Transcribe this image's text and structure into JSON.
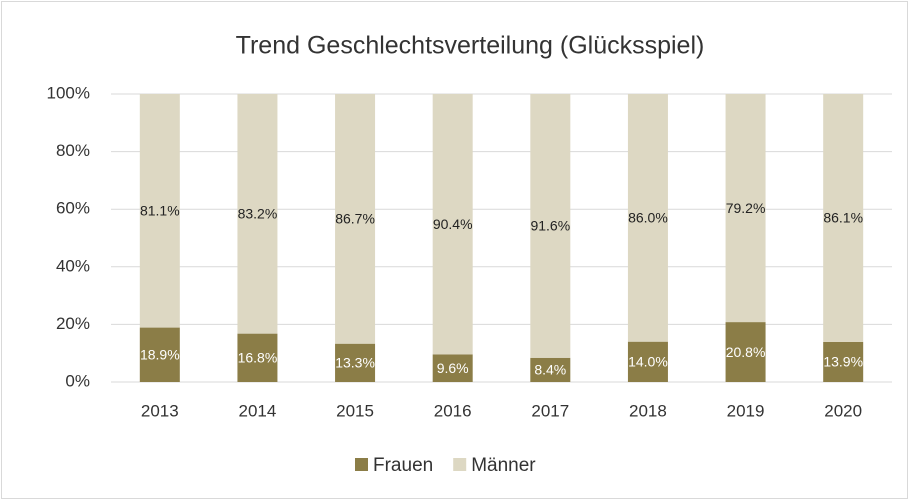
{
  "chart_data": {
    "type": "stacked_bar",
    "title": "Trend Geschlechtsverteilung (Glücksspiel)",
    "categories": [
      "2013",
      "2014",
      "2015",
      "2016",
      "2017",
      "2018",
      "2019",
      "2020"
    ],
    "series": [
      {
        "name": "Frauen",
        "color": "#8b7d47",
        "values": [
          18.9,
          16.8,
          13.3,
          9.6,
          8.4,
          14.0,
          20.8,
          13.9
        ],
        "value_labels": [
          "18.9%",
          "16.8%",
          "13.3%",
          "9.6%",
          "8.4%",
          "14.0%",
          "20.8%",
          "13.9%"
        ]
      },
      {
        "name": "Männer",
        "color": "#ddd8c3",
        "values": [
          81.1,
          83.2,
          86.7,
          90.4,
          91.6,
          86.0,
          79.2,
          86.1
        ],
        "value_labels": [
          "81.1%",
          "83.2%",
          "86.7%",
          "90.4%",
          "91.6%",
          "86.0%",
          "79.2%",
          "86.1%"
        ]
      }
    ],
    "ylim": [
      0,
      100
    ],
    "yticks": [
      {
        "value": 0,
        "label": "0%"
      },
      {
        "value": 20,
        "label": "20%"
      },
      {
        "value": 40,
        "label": "40%"
      },
      {
        "value": 60,
        "label": "60%"
      },
      {
        "value": 80,
        "label": "80%"
      },
      {
        "value": 100,
        "label": "100%"
      }
    ],
    "grid": true,
    "legend": "bottom"
  }
}
